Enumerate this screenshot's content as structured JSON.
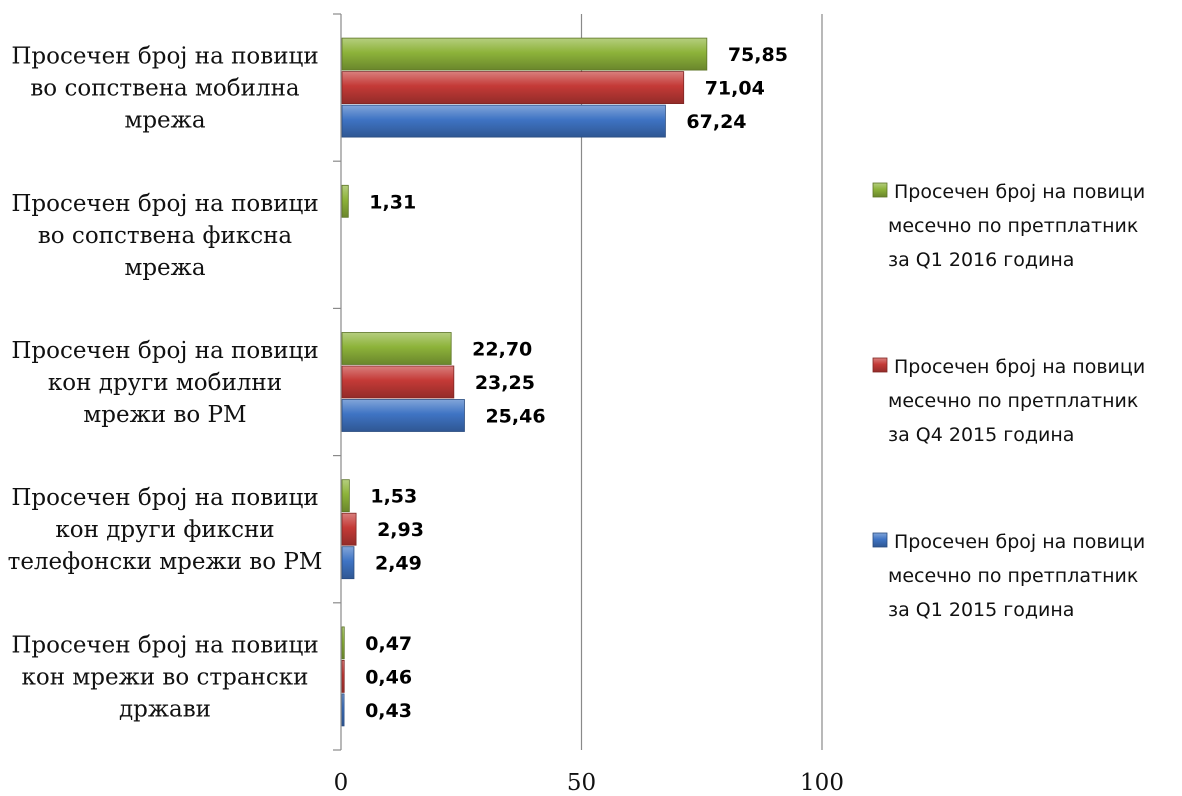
{
  "colors": {
    "Q1 2016": "#8db33a",
    "Q4 2015": "#c43a37",
    "Q1 2015": "#3f74c4"
  },
  "chart_data": {
    "type": "bar",
    "orientation": "horizontal",
    "categories": [
      [
        "Просечен број на повици",
        "во сопствена мобилна",
        "мрежа"
      ],
      [
        "Просечен број на повици",
        "во сопствена фиксна",
        "мрежа"
      ],
      [
        "Просечен број на повици",
        "кон други мобилни",
        "мрежи во РМ"
      ],
      [
        "Просечен број на повици",
        "кон други фиксни",
        "телефонски мрежи во РМ"
      ],
      [
        "Просечен број на повици",
        "кон мрежи во странски",
        "држави"
      ]
    ],
    "series": [
      {
        "name": [
          "Просечен број на повици",
          "месечно по претплатник",
          "за Q1 2016 година"
        ],
        "color_key": "Q1 2016",
        "values": [
          75.85,
          1.31,
          22.7,
          1.53,
          0.47
        ],
        "labels": [
          "75,85",
          "1,31",
          "22,70",
          "1,53",
          "0,47"
        ]
      },
      {
        "name": [
          "Просечен број на повици",
          "месечно по претплатник",
          "за Q4 2015 година"
        ],
        "color_key": "Q4 2015",
        "values": [
          71.04,
          null,
          23.25,
          2.93,
          0.46
        ],
        "labels": [
          "71,04",
          "",
          "23,25",
          "2,93",
          "0,46"
        ]
      },
      {
        "name": [
          "Просечен број на повици",
          "месечно по претплатник",
          "за Q1 2015 година"
        ],
        "color_key": "Q1 2015",
        "values": [
          67.24,
          null,
          25.46,
          2.49,
          0.43
        ],
        "labels": [
          "67,24",
          "",
          "25,46",
          "2,49",
          "0,43"
        ]
      }
    ],
    "xlim": [
      0,
      100
    ],
    "xticks": [
      0,
      50,
      100
    ],
    "xticklabels": [
      "0",
      "50",
      "100"
    ],
    "grid": true,
    "legend_position": "right"
  }
}
